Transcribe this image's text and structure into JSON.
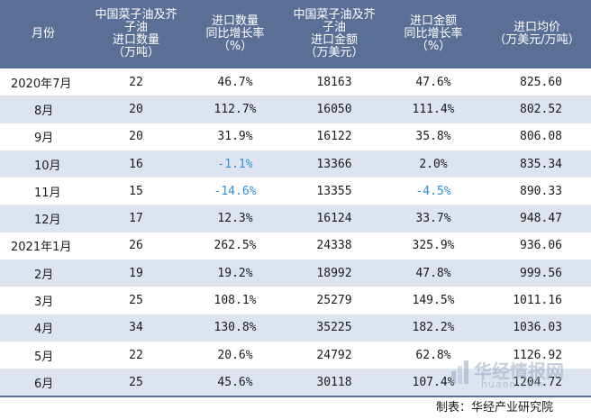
{
  "table": {
    "headers": [
      [
        "月份"
      ],
      [
        "中国菜子油及芥",
        "子油",
        "进口数量",
        "（万吨）"
      ],
      [
        "进口数量",
        "同比增长率",
        "（%）"
      ],
      [
        "中国菜子油及芥",
        "子油",
        "进口金额",
        "（万美元）"
      ],
      [
        "进口金额",
        "同比增长率",
        "（%）"
      ],
      [
        "进口均价",
        "（万美元/万吨）"
      ]
    ],
    "rows": [
      {
        "month": "2020年7月",
        "qty": "22",
        "qty_yoy": "46.7%",
        "amount": "18163",
        "amount_yoy": "47.6%",
        "price": "825.60"
      },
      {
        "month": "8月",
        "qty": "20",
        "qty_yoy": "112.7%",
        "amount": "16050",
        "amount_yoy": "111.4%",
        "price": "802.52"
      },
      {
        "month": "9月",
        "qty": "20",
        "qty_yoy": "31.9%",
        "amount": "16122",
        "amount_yoy": "35.8%",
        "price": "806.08"
      },
      {
        "month": "10月",
        "qty": "16",
        "qty_yoy": "-1.1%",
        "amount": "13366",
        "amount_yoy": "2.0%",
        "price": "835.34"
      },
      {
        "month": "11月",
        "qty": "15",
        "qty_yoy": "-14.6%",
        "amount": "13355",
        "amount_yoy": "-4.5%",
        "price": "890.33"
      },
      {
        "month": "12月",
        "qty": "17",
        "qty_yoy": "12.3%",
        "amount": "16124",
        "amount_yoy": "33.7%",
        "price": "948.47"
      },
      {
        "month": "2021年1月",
        "qty": "26",
        "qty_yoy": "262.5%",
        "amount": "24338",
        "amount_yoy": "325.9%",
        "price": "936.06"
      },
      {
        "month": "2月",
        "qty": "19",
        "qty_yoy": "19.2%",
        "amount": "18992",
        "amount_yoy": "47.8%",
        "price": "999.56"
      },
      {
        "month": "3月",
        "qty": "25",
        "qty_yoy": "108.1%",
        "amount": "25279",
        "amount_yoy": "149.5%",
        "price": "1011.16"
      },
      {
        "month": "4月",
        "qty": "34",
        "qty_yoy": "130.8%",
        "amount": "35225",
        "amount_yoy": "182.2%",
        "price": "1036.03"
      },
      {
        "month": "5月",
        "qty": "22",
        "qty_yoy": "20.6%",
        "amount": "24792",
        "amount_yoy": "62.8%",
        "price": "1126.92"
      },
      {
        "month": "6月",
        "qty": "25",
        "qty_yoy": "45.6%",
        "amount": "30118",
        "amount_yoy": "107.4%",
        "price": "1204.72"
      }
    ]
  },
  "footer": {
    "source": "制表：华经产业研究院"
  },
  "watermark": {
    "name": "华经情报网",
    "url": "huaon.com"
  },
  "colors": {
    "header_bg": "#5a6f95",
    "stripe_bg": "#dde4ef",
    "negative": "#2e8fd6"
  }
}
